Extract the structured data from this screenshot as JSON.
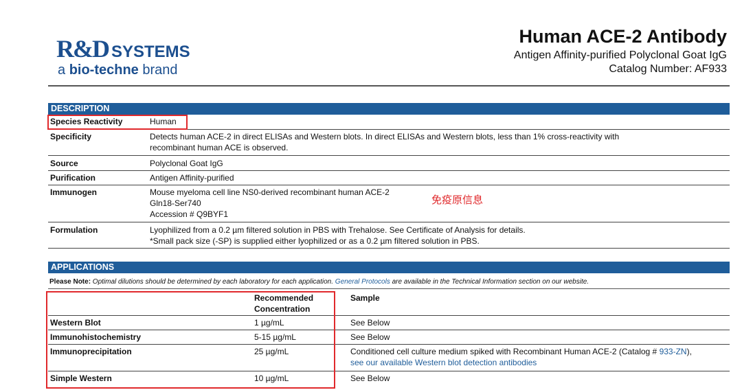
{
  "logo": {
    "line1": "R&D",
    "line1b": "SYSTEMS",
    "line2a": "a ",
    "line2b": "bio-techne",
    "line2c": " brand"
  },
  "header": {
    "title": "Human ACE-2 Antibody",
    "subtitle": "Antigen Affinity-purified Polyclonal Goat IgG",
    "catalog": "Catalog Number:  AF933"
  },
  "description": {
    "heading": "DESCRIPTION",
    "rows": [
      {
        "label": "Species Reactivity",
        "value": "Human"
      },
      {
        "label": "Specificity",
        "value": "Detects human ACE-2 in direct ELISAs and Western blots. In direct ELISAs and Western blots, less than 1% cross-reactivity with",
        "value2": "recombinant human ACE is observed."
      },
      {
        "label": "Source",
        "value": "Polyclonal Goat IgG"
      },
      {
        "label": "Purification",
        "value": "Antigen Affinity-purified"
      },
      {
        "label": "Immunogen",
        "value": "Mouse myeloma cell line NS0-derived recombinant human ACE-2",
        "value2": "Gln18-Ser740",
        "value3": "Accession # Q9BYF1"
      },
      {
        "label": "Formulation",
        "value": "Lyophilized from a 0.2 µm filtered solution in PBS with Trehalose. See Certificate of Analysis for details.",
        "value2": "*Small pack size (-SP) is supplied either lyophilized or as a 0.2 µm filtered solution in PBS."
      }
    ]
  },
  "annotation": "免疫原信息",
  "applications": {
    "heading": "APPLICATIONS",
    "note_bold": "Please Note:",
    "note_text": " Optimal dilutions should be determined by each laboratory for each application. ",
    "note_link": "General Protocols",
    "note_tail": " are available in the Technical Information section on our website.",
    "col_conc": "Recommended",
    "col_conc2": "Concentration",
    "col_sample": "Sample",
    "rows": [
      {
        "app": "Western Blot",
        "conc": "1 µg/mL",
        "sample": "See Below"
      },
      {
        "app": "Immunohistochemistry",
        "conc": "5-15 µg/mL",
        "sample": "See Below"
      },
      {
        "app": "Immunoprecipitation",
        "conc": "25 µg/mL",
        "sample": "Conditioned cell culture medium spiked with Recombinant Human ACE-2 (Catalog # ",
        "sample_link": "933-ZN",
        "sample_end": "),",
        "sample2": "see our available Western blot detection antibodies"
      },
      {
        "app": "Simple Western",
        "conc": "10 µg/mL",
        "sample": "See Below"
      }
    ]
  },
  "colors": {
    "bar": "#1f5d9a",
    "highlight": "#e0282b"
  }
}
